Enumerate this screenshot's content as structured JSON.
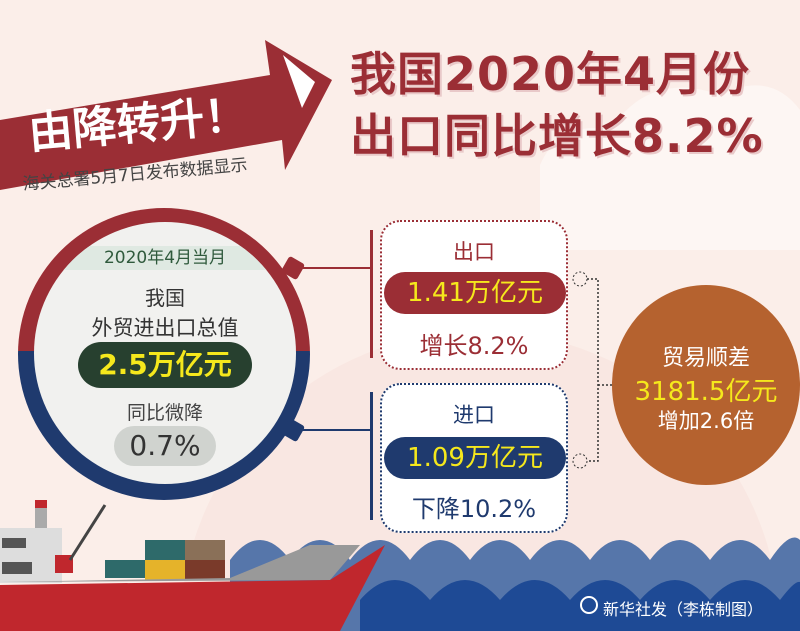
{
  "header": {
    "arrow_label": "由降转升！",
    "subtitle": "海关总署5月7日发布数据显示",
    "title_line1": "我国2020年4月份",
    "title_line2": "出口同比增长8.2%"
  },
  "total": {
    "period": "2020年4月当月",
    "label_line1": "我国",
    "label_line2": "外贸进出口总值",
    "value": "2.5万亿元",
    "change_label": "同比微降",
    "change_value": "0.7%"
  },
  "export": {
    "title": "出口",
    "value": "1.41万亿元",
    "change": "增长8.2%"
  },
  "import": {
    "title": "进口",
    "value": "1.09万亿元",
    "change": "下降10.2%"
  },
  "surplus": {
    "title": "贸易顺差",
    "value": "3181.5亿元",
    "change": "增加2.6倍"
  },
  "credit": "新华社发（李栋制图）",
  "colors": {
    "red": "#9b2e35",
    "navy": "#1f3a6e",
    "orange": "#b5622f",
    "yellow": "#f5e81c",
    "dark_green": "#27402f"
  }
}
